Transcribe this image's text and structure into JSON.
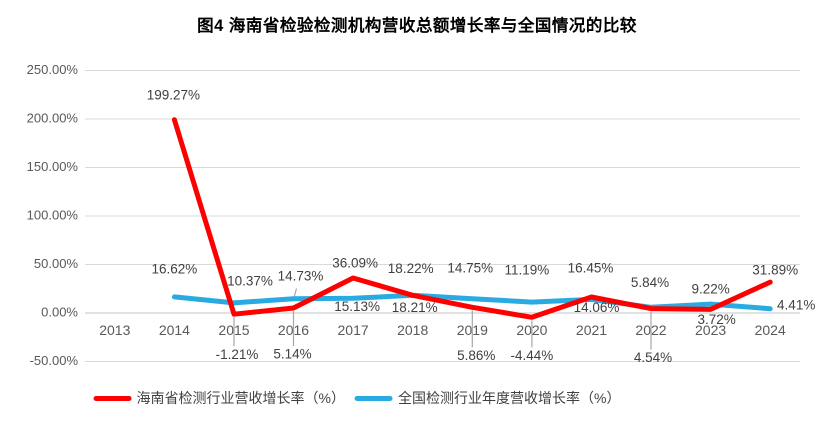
{
  "title": "图4  海南省检验检测机构营收总额增长率与全国情况的比较",
  "chart_data": {
    "type": "line",
    "title": "图4  海南省检验检测机构营收总额增长率与全国情况的比较",
    "categories": [
      "2013",
      "2014",
      "2015",
      "2016",
      "2017",
      "2018",
      "2019",
      "2020",
      "2021",
      "2022",
      "2023",
      "2024"
    ],
    "series": [
      {
        "name": "海南省检测行业营收增长率（%）",
        "color": "#FF0000",
        "values": [
          null,
          199.27,
          -1.21,
          5.14,
          36.09,
          18.22,
          5.86,
          -4.44,
          16.45,
          4.54,
          3.72,
          31.89
        ]
      },
      {
        "name": "全国检测行业年度营收增长率（%）",
        "color": "#29ABE2",
        "values": [
          null,
          16.62,
          10.37,
          14.73,
          15.13,
          18.21,
          14.75,
          11.19,
          14.06,
          5.84,
          9.22,
          4.41
        ]
      }
    ],
    "ylim": [
      -50,
      250
    ],
    "ytick_step": 50,
    "ytick_labels": [
      "250.00%",
      "200.00%",
      "150.00%",
      "100.00%",
      "50.00%",
      "0.00%",
      "-50.00%"
    ],
    "grid": true,
    "legend_position": "bottom",
    "colors": {
      "gridline": "#D9D9D9",
      "zero_line": "#C6C6C6",
      "tick_text": "#595959",
      "data_label_text": "#404040",
      "leader_line": "#A6A6A6"
    }
  }
}
